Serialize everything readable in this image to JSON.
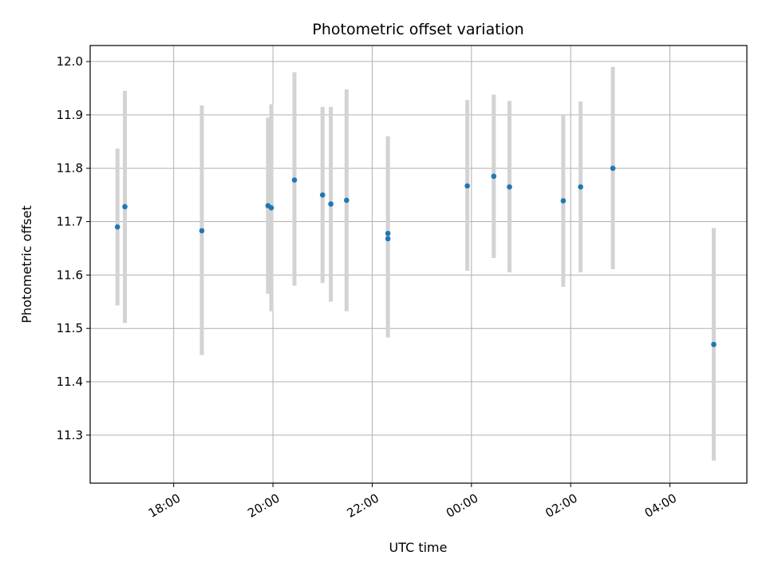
{
  "chart_data": {
    "type": "scatter",
    "title": "Photometric offset variation",
    "xlabel": "UTC time",
    "ylabel": "Photometric offset",
    "grid": true,
    "x_axis": {
      "kind": "time",
      "range": [
        "16:19",
        "05:33"
      ],
      "ticks": [
        "18:00",
        "20:00",
        "22:00",
        "00:00",
        "02:00",
        "04:00"
      ]
    },
    "y_axis": {
      "range": [
        11.21,
        12.03
      ],
      "ticks": [
        "11.3",
        "11.4",
        "11.5",
        "11.6",
        "11.7",
        "11.8",
        "11.9",
        "12.0"
      ]
    },
    "colors": {
      "point": "#1f77b4",
      "errorbar": "#d3d3d3",
      "grid": "#b0b0b0"
    },
    "points": [
      {
        "t": "16:52",
        "y": 11.69,
        "lo": 11.543,
        "hi": 11.837
      },
      {
        "t": "17:01",
        "y": 11.728,
        "lo": 11.51,
        "hi": 11.945
      },
      {
        "t": "18:34",
        "y": 11.683,
        "lo": 11.45,
        "hi": 11.918
      },
      {
        "t": "19:54",
        "y": 11.73,
        "lo": 11.565,
        "hi": 11.895
      },
      {
        "t": "19:58",
        "y": 11.726,
        "lo": 11.532,
        "hi": 11.92
      },
      {
        "t": "20:26",
        "y": 11.778,
        "lo": 11.58,
        "hi": 11.98
      },
      {
        "t": "21:00",
        "y": 11.75,
        "lo": 11.585,
        "hi": 11.915
      },
      {
        "t": "21:10",
        "y": 11.733,
        "lo": 11.55,
        "hi": 11.915
      },
      {
        "t": "21:29",
        "y": 11.74,
        "lo": 11.532,
        "hi": 11.948
      },
      {
        "t": "22:19",
        "y": 11.678,
        "lo": 11.483,
        "hi": 11.86
      },
      {
        "t": "22:19",
        "y": 11.668,
        "lo": 11.483,
        "hi": 11.86
      },
      {
        "t": "23:55",
        "y": 11.767,
        "lo": 11.608,
        "hi": 11.928
      },
      {
        "t": "00:27",
        "y": 11.785,
        "lo": 11.632,
        "hi": 11.938
      },
      {
        "t": "00:46",
        "y": 11.765,
        "lo": 11.605,
        "hi": 11.926
      },
      {
        "t": "01:51",
        "y": 11.739,
        "lo": 11.578,
        "hi": 11.9
      },
      {
        "t": "02:12",
        "y": 11.765,
        "lo": 11.605,
        "hi": 11.925
      },
      {
        "t": "02:51",
        "y": 11.8,
        "lo": 11.611,
        "hi": 11.99
      },
      {
        "t": "04:53",
        "y": 11.47,
        "lo": 11.252,
        "hi": 11.688
      }
    ]
  }
}
